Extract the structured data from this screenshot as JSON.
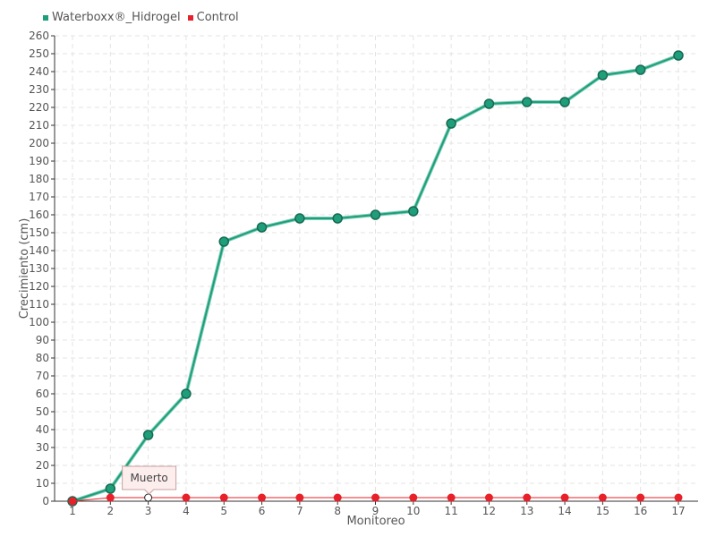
{
  "colors": {
    "waterboxx": "#1e9e7a",
    "control": "#e8202a",
    "grid": "#e3e3e3",
    "axis": "#333333"
  },
  "chart_data": {
    "type": "line",
    "xlabel": "Monitoreo",
    "ylabel": "Crecimiento (cm)",
    "categories": [
      "1",
      "2",
      "3",
      "4",
      "5",
      "6",
      "7",
      "8",
      "9",
      "10",
      "11",
      "12",
      "13",
      "14",
      "15",
      "16",
      "17"
    ],
    "ylim": [
      0,
      260
    ],
    "ytick_step": 10,
    "grid": true,
    "legend_position": "top-left",
    "series": [
      {
        "name": "Waterboxx®_Hidrogel",
        "color": "#1e9e7a",
        "values": [
          0,
          7,
          37,
          60,
          145,
          153,
          158,
          158,
          160,
          162,
          211,
          222,
          223,
          223,
          238,
          241,
          249
        ]
      },
      {
        "name": "Control",
        "color": "#e8202a",
        "values": [
          0,
          2,
          2,
          2,
          2,
          2,
          2,
          2,
          2,
          2,
          2,
          2,
          2,
          2,
          2,
          2,
          2
        ]
      }
    ],
    "annotation": {
      "text": "Muerto",
      "category": "3",
      "series": "Control"
    }
  }
}
